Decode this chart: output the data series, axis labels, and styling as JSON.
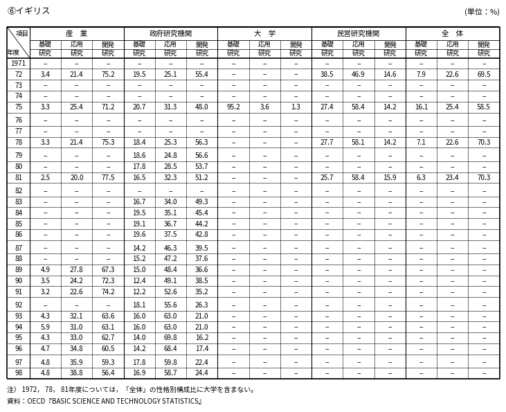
{
  "title": "⑥イギリス",
  "unit": "(単位：%)",
  "note": "注） 1972， 78， 81年度については，「全体」の性格別構成比に大学を含まない。",
  "source": "資料：OECD『BASIC SCIENCE AND TECHNOLOGY STATISTICS』",
  "col_groups": [
    "産　業",
    "政府研究機関",
    "大　学",
    "民営研究機関",
    "全　体"
  ],
  "col_sub": [
    "基礎\n研究",
    "応用\n研究",
    "開発\n研究"
  ],
  "header_corner_top": "項目",
  "header_corner_bottom": "年度",
  "rows": [
    [
      "1971",
      "−",
      "−",
      "−",
      "−",
      "−",
      "−",
      "−",
      "−",
      "−",
      "−",
      "−",
      "−",
      "−",
      "−",
      "−"
    ],
    [
      "72",
      "3.4",
      "21.4",
      "75.2",
      "19.5",
      "25.1",
      "55.4",
      "−",
      "−",
      "−",
      "38.5",
      "46.9",
      "14.6",
      "7.9",
      "22.6",
      "69.5"
    ],
    [
      "73",
      "−",
      "−",
      "−",
      "−",
      "−",
      "−",
      "−",
      "−",
      "−",
      "−",
      "−",
      "−",
      "−",
      "−",
      "−"
    ],
    [
      "74",
      "−",
      "−",
      "−",
      "−",
      "−",
      "−",
      "−",
      "−",
      "−",
      "−",
      "−",
      "−",
      "−",
      "−",
      "−"
    ],
    [
      "75",
      "3.3",
      "25.4",
      "71.2",
      "20.7",
      "31.3",
      "48.0",
      "95.2",
      "3.6",
      "1.3",
      "27.4",
      "58.4",
      "14.2",
      "16.1",
      "25.4",
      "58.5"
    ],
    [
      "76",
      "−",
      "−",
      "−",
      "−",
      "−",
      "−",
      "−",
      "−",
      "−",
      "−",
      "−",
      "−",
      "−",
      "−",
      "−"
    ],
    [
      "77",
      "−",
      "−",
      "−",
      "−",
      "−",
      "−",
      "−",
      "−",
      "−",
      "−",
      "−",
      "−",
      "−",
      "−",
      "−"
    ],
    [
      "78",
      "3.3",
      "21.4",
      "75.3",
      "18.4",
      "25.3",
      "56.3",
      "−",
      "−",
      "−",
      "27.7",
      "58.1",
      "14.2",
      "7.1",
      "22.6",
      "70.3"
    ],
    [
      "79",
      "−",
      "−",
      "−",
      "18.6",
      "24.8",
      "56.6",
      "−",
      "−",
      "−",
      "−",
      "−",
      "−",
      "−",
      "−",
      "−"
    ],
    [
      "80",
      "−",
      "−",
      "−",
      "17.8",
      "28.5",
      "53.7",
      "−",
      "−",
      "−",
      "−",
      "−",
      "−",
      "−",
      "−",
      "−"
    ],
    [
      "81",
      "2.5",
      "20.0",
      "77.5",
      "16.5",
      "32.3",
      "51.2",
      "−",
      "−",
      "−",
      "25.7",
      "58.4",
      "15.9",
      "6.3",
      "23.4",
      "70.3"
    ],
    [
      "82",
      "−",
      "−",
      "−",
      "−",
      "−",
      "−",
      "−",
      "−",
      "−",
      "−",
      "−",
      "−",
      "−",
      "−",
      "−"
    ],
    [
      "83",
      "−",
      "−",
      "−",
      "16.7",
      "34.0",
      "49.3",
      "−",
      "−",
      "−",
      "−",
      "−",
      "−",
      "−",
      "−",
      "−"
    ],
    [
      "84",
      "−",
      "−",
      "−",
      "19.5",
      "35.1",
      "45.4",
      "−",
      "−",
      "−",
      "−",
      "−",
      "−",
      "−",
      "−",
      "−"
    ],
    [
      "85",
      "−",
      "−",
      "−",
      "19.1",
      "36.7",
      "44.2",
      "−",
      "−",
      "−",
      "−",
      "−",
      "−",
      "−",
      "−",
      "−"
    ],
    [
      "86",
      "−",
      "−",
      "−",
      "19.6",
      "37.5",
      "42.8",
      "−",
      "−",
      "−",
      "−",
      "−",
      "−",
      "−",
      "−",
      "−"
    ],
    [
      "87",
      "−",
      "−",
      "−",
      "14.2",
      "46.3",
      "39.5",
      "−",
      "−",
      "−",
      "−",
      "−",
      "−",
      "−",
      "−",
      "−"
    ],
    [
      "88",
      "−",
      "−",
      "−",
      "15.2",
      "47.2",
      "37.6",
      "−",
      "−",
      "−",
      "−",
      "−",
      "−",
      "−",
      "−",
      "−"
    ],
    [
      "89",
      "4.9",
      "27.8",
      "67.3",
      "15.0",
      "48.4",
      "36.6",
      "−",
      "−",
      "−",
      "−",
      "−",
      "−",
      "−",
      "−",
      "−"
    ],
    [
      "90",
      "3.5",
      "24.2",
      "72.3",
      "12.4",
      "49.1",
      "38.5",
      "−",
      "−",
      "−",
      "−",
      "−",
      "−",
      "−",
      "−",
      "−"
    ],
    [
      "91",
      "3.2",
      "22.6",
      "74.2",
      "12.2",
      "52.6",
      "35.2",
      "−",
      "−",
      "−",
      "−",
      "−",
      "−",
      "−",
      "−",
      "−"
    ],
    [
      "92",
      "−",
      "−",
      "−",
      "18.1",
      "55.6",
      "26.3",
      "−",
      "−",
      "−",
      "−",
      "−",
      "−",
      "−",
      "−",
      "−"
    ],
    [
      "93",
      "4.3",
      "32.1",
      "63.6",
      "16.0",
      "63.0",
      "21.0",
      "−",
      "−",
      "−",
      "−",
      "−",
      "−",
      "−",
      "−",
      "−"
    ],
    [
      "94",
      "5.9",
      "31.0",
      "63.1",
      "16.0",
      "63.0",
      "21.0",
      "−",
      "−",
      "−",
      "−",
      "−",
      "−",
      "−",
      "−",
      "−"
    ],
    [
      "95",
      "4.3",
      "33.0",
      "62.7",
      "14.0",
      "69.8",
      "16.2",
      "−",
      "−",
      "−",
      "−",
      "−",
      "−",
      "−",
      "−",
      "−"
    ],
    [
      "96",
      "4.7",
      "34.8",
      "60.5",
      "14.2",
      "68.4",
      "17.4",
      "−",
      "−",
      "−",
      "−",
      "−",
      "−",
      "−",
      "−",
      "−"
    ],
    [
      "97",
      "4.8",
      "35.9",
      "59.3",
      "17.8",
      "59.8",
      "22.4",
      "−",
      "−",
      "−",
      "−",
      "−",
      "−",
      "−",
      "−",
      "−"
    ],
    [
      "98",
      "4.8",
      "38.8",
      "56.4",
      "16.9",
      "58.7",
      "24.4",
      "−",
      "−",
      "−",
      "−",
      "−",
      "−",
      "−",
      "−",
      "−"
    ]
  ],
  "gap_after_indices": [
    4,
    7,
    10,
    15,
    20,
    25
  ],
  "figsize": [
    7.37,
    5.87
  ],
  "dpi": 100
}
